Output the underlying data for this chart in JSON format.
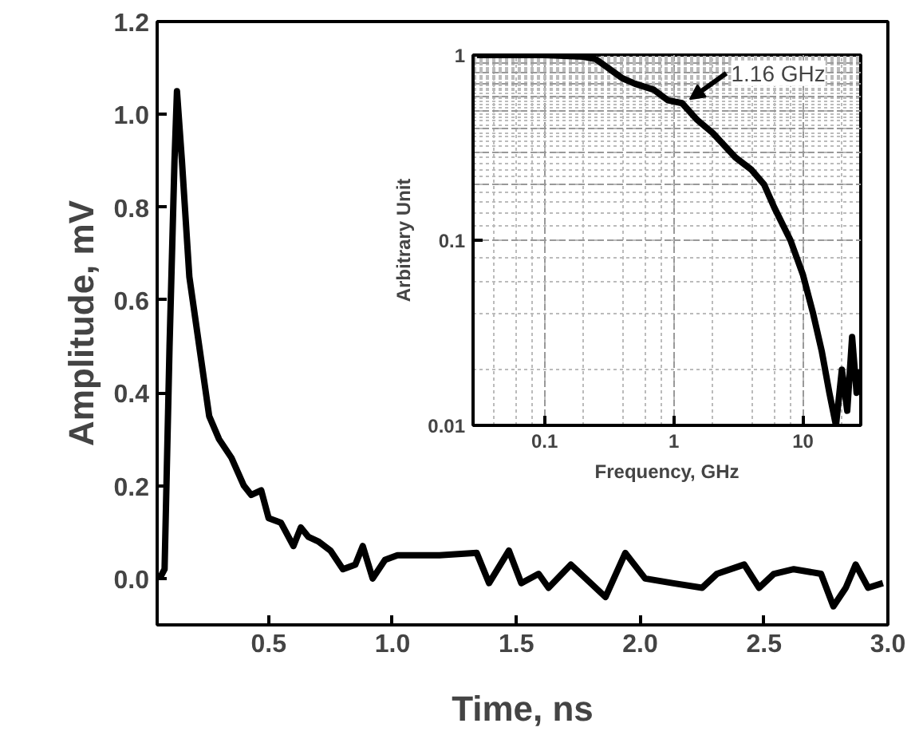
{
  "chart_data": [
    {
      "type": "line",
      "xlabel": "Time, ns",
      "ylabel": "Amplitude, mV",
      "xlim": [
        0.05,
        3.0
      ],
      "ylim": [
        -0.1,
        1.2
      ],
      "xticks": [
        {
          "value": 0.5,
          "label": "0.5"
        },
        {
          "value": 1.0,
          "label": "1.0"
        },
        {
          "value": 1.5,
          "label": "1.5"
        },
        {
          "value": 2.0,
          "label": "2.0"
        },
        {
          "value": 2.5,
          "label": "2.5"
        },
        {
          "value": 3.0,
          "label": "3.0"
        }
      ],
      "yticks": [
        {
          "value": 0.0,
          "label": "0.0"
        },
        {
          "value": 0.2,
          "label": "0.2"
        },
        {
          "value": 0.4,
          "label": "0.4"
        },
        {
          "value": 0.6,
          "label": "0.6"
        },
        {
          "value": 0.8,
          "label": "0.8"
        },
        {
          "value": 1.0,
          "label": "1.0"
        },
        {
          "value": 1.2,
          "label": "1.2"
        }
      ],
      "grid": false,
      "series": [
        {
          "color": "#000000",
          "x": [
            0.06,
            0.08,
            0.1,
            0.12,
            0.13,
            0.15,
            0.18,
            0.22,
            0.26,
            0.3,
            0.35,
            0.4,
            0.43,
            0.47,
            0.5,
            0.55,
            0.6,
            0.63,
            0.66,
            0.7,
            0.75,
            0.8,
            0.85,
            0.88,
            0.92,
            0.97,
            1.02,
            1.1,
            1.19,
            1.34,
            1.39,
            1.47,
            1.52,
            1.59,
            1.63,
            1.72,
            1.86,
            1.94,
            2.02,
            2.13,
            2.25,
            2.31,
            2.42,
            2.48,
            2.54,
            2.62,
            2.73,
            2.78,
            2.83,
            2.87,
            2.92,
            2.98
          ],
          "values": [
            0.0,
            0.02,
            0.5,
            0.9,
            1.05,
            0.9,
            0.65,
            0.5,
            0.35,
            0.3,
            0.26,
            0.2,
            0.18,
            0.19,
            0.13,
            0.12,
            0.07,
            0.11,
            0.09,
            0.08,
            0.06,
            0.02,
            0.03,
            0.07,
            0.0,
            0.04,
            0.05,
            0.05,
            0.05,
            0.055,
            -0.01,
            0.06,
            -0.01,
            0.01,
            -0.02,
            0.03,
            -0.04,
            0.055,
            0.0,
            -0.01,
            -0.02,
            0.01,
            0.03,
            -0.02,
            0.01,
            0.02,
            0.01,
            -0.06,
            -0.02,
            0.03,
            -0.02,
            -0.01
          ]
        }
      ]
    },
    {
      "type": "line",
      "xlabel": "Frequency, GHz",
      "ylabel": "Arbitrary Unit",
      "log": "xy",
      "xlim": [
        0.028,
        28
      ],
      "ylim": [
        0.01,
        1
      ],
      "xticks": [
        0.1,
        1,
        10
      ],
      "yticks": [
        0.01,
        0.1,
        1
      ],
      "grid": true,
      "annotations": [
        {
          "text": "1.16 GHz",
          "x": 1.16,
          "y": 0.55
        }
      ],
      "series": [
        {
          "color": "#000000",
          "x": [
            0.03,
            0.05,
            0.1,
            0.2,
            0.25,
            0.4,
            0.5,
            0.7,
            0.9,
            1.16,
            1.5,
            2,
            3,
            4,
            5,
            6,
            8,
            10,
            12,
            14,
            16,
            18,
            20,
            22,
            24,
            26,
            28
          ],
          "values": [
            1,
            1,
            1,
            0.98,
            0.95,
            0.75,
            0.7,
            0.65,
            0.57,
            0.55,
            0.45,
            0.38,
            0.28,
            0.24,
            0.2,
            0.15,
            0.1,
            0.065,
            0.04,
            0.025,
            0.015,
            0.01,
            0.02,
            0.012,
            0.03,
            0.015,
            0.02
          ]
        }
      ]
    }
  ]
}
